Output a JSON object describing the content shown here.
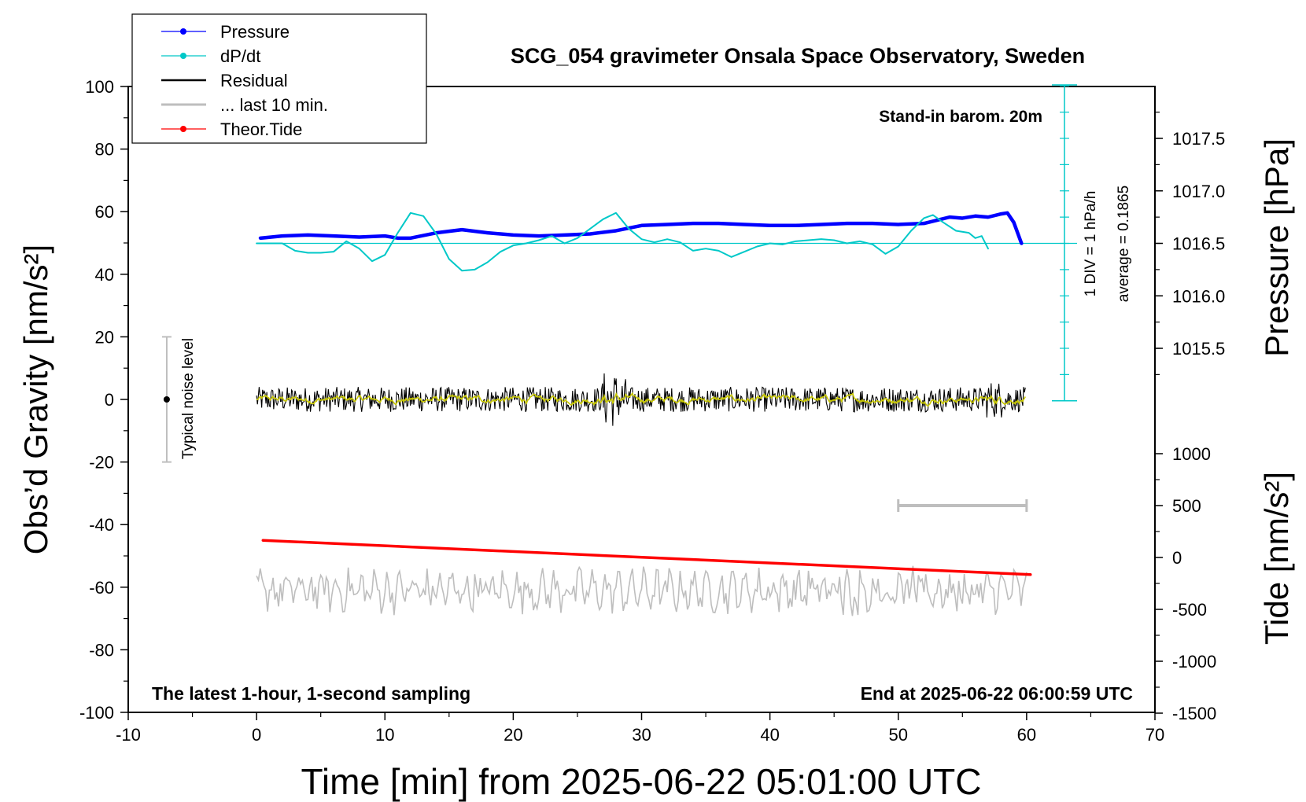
{
  "chart_data": {
    "type": "line",
    "title": "SCG_054 gravimeter Onsala Space Observatory, Sweden",
    "xlabel": "Time [min] from 2025-06-22 05:01:00 UTC",
    "ylabel_left": "Obs’d Gravity [nm/s²]",
    "ylabel_right_top": "Pressure [hPa]",
    "ylabel_right_bottom": "Tide [nm/s²]",
    "xlim": [
      -10,
      70
    ],
    "ylim": [
      -100,
      100
    ],
    "pressure_ylim": [
      1015.0,
      1018.0
    ],
    "tide_ylim": [
      -1500,
      1500
    ],
    "x_ticks": [
      "-10",
      "0",
      "10",
      "20",
      "30",
      "40",
      "50",
      "60",
      "70"
    ],
    "y_ticks": [
      "-100",
      "-80",
      "-60",
      "-40",
      "-20",
      "0",
      "20",
      "40",
      "60",
      "80",
      "100"
    ],
    "pressure_ticks": [
      "1015.5",
      "1016.0",
      "1016.5",
      "1017.0",
      "1017.5"
    ],
    "tide_ticks": [
      "-1500",
      "-1000",
      "-500",
      "0",
      "500",
      "1000"
    ],
    "grid": false,
    "legend_position": "top-left",
    "legend": [
      {
        "label": "Pressure",
        "color": "#0000ff",
        "marker": true
      },
      {
        "label": "dP/dt",
        "color": "#00c8c8",
        "marker": true
      },
      {
        "label": "Residual",
        "color": "#000000",
        "marker": false
      },
      {
        "label": "... last 10 min.",
        "color": "#bebebe",
        "marker": false
      },
      {
        "label": "Theor.Tide",
        "color": "#ff0000",
        "marker": true
      }
    ],
    "annotations": {
      "barometer": "Stand-in barom. 20m",
      "scale": "1 DIV = 1 hPa/h",
      "average": "average = 0.1865",
      "noise": "Typical noise level",
      "period": "The latest 1-hour, 1-second sampling",
      "end_time": "End at 2025-06-22 06:00:59 UTC"
    },
    "noise_bar": {
      "x": -7,
      "y": 0,
      "low": -20,
      "high": 20
    },
    "window_bar": {
      "x_start": 50,
      "x_end": 60,
      "tide_value": 500
    },
    "series": [
      {
        "name": "Pressure",
        "axis": "pressure",
        "color": "#0000ff",
        "x": [
          0.3,
          2,
          4,
          6,
          8,
          10,
          11,
          12,
          14,
          16,
          18,
          20,
          22,
          24,
          26,
          28,
          30,
          32,
          34,
          36,
          38,
          40,
          42,
          44,
          46,
          48,
          50,
          52,
          53,
          54,
          55,
          56,
          57,
          58,
          58.5,
          59,
          59.6
        ],
        "y": [
          1016.55,
          1016.57,
          1016.58,
          1016.57,
          1016.56,
          1016.57,
          1016.55,
          1016.55,
          1016.6,
          1016.63,
          1016.6,
          1016.58,
          1016.57,
          1016.58,
          1016.59,
          1016.62,
          1016.67,
          1016.68,
          1016.69,
          1016.69,
          1016.68,
          1016.67,
          1016.67,
          1016.68,
          1016.69,
          1016.69,
          1016.68,
          1016.69,
          1016.72,
          1016.75,
          1016.74,
          1016.76,
          1016.75,
          1016.78,
          1016.79,
          1016.7,
          1016.5
        ]
      },
      {
        "name": "dP/dt",
        "axis": "pressure",
        "color": "#00c8c8",
        "x": [
          0,
          2,
          3,
          4,
          5,
          6,
          7,
          8,
          9,
          10,
          11,
          12,
          13,
          14,
          15,
          16,
          17,
          18,
          19,
          20,
          21,
          22,
          23,
          24,
          25,
          26,
          27,
          28,
          29,
          30,
          31,
          32,
          33,
          34,
          35,
          36,
          37,
          38,
          39,
          40,
          41,
          42,
          43,
          44,
          45,
          46,
          47,
          48,
          49,
          50,
          51,
          52,
          52.7,
          53.5,
          54.5,
          55.5,
          56,
          56.5,
          57
        ],
        "y": [
          1016.5,
          1016.5,
          1016.43,
          1016.41,
          1016.41,
          1016.42,
          1016.52,
          1016.45,
          1016.33,
          1016.39,
          1016.6,
          1016.79,
          1016.76,
          1016.59,
          1016.35,
          1016.24,
          1016.25,
          1016.32,
          1016.42,
          1016.48,
          1016.5,
          1016.53,
          1016.57,
          1016.5,
          1016.55,
          1016.64,
          1016.73,
          1016.79,
          1016.64,
          1016.54,
          1016.51,
          1016.54,
          1016.51,
          1016.43,
          1016.45,
          1016.43,
          1016.37,
          1016.42,
          1016.47,
          1016.5,
          1016.49,
          1016.52,
          1016.53,
          1016.54,
          1016.53,
          1016.5,
          1016.52,
          1016.49,
          1016.4,
          1016.47,
          1016.62,
          1016.74,
          1016.77,
          1016.7,
          1016.62,
          1016.6,
          1016.55,
          1016.57,
          1016.45
        ]
      },
      {
        "name": "Residual",
        "axis": "gravity",
        "color": "#000000",
        "x_start": 0,
        "x_end": 59.9,
        "level": 0,
        "amplitude": 4,
        "smoothed_color": "#c8c800",
        "bursts": [
          {
            "x": 27.5,
            "amplitude": 9
          },
          {
            "x": 28.3,
            "amplitude": 7
          },
          {
            "x": 57.5,
            "amplitude": 6
          }
        ]
      },
      {
        "name": "... last 10 min.",
        "axis": "gravity",
        "color": "#bebebe",
        "x_start": 0,
        "x_end": 60,
        "level": -61,
        "amplitude": 5
      },
      {
        "name": "Theor.Tide",
        "axis": "tide",
        "color": "#ff0000",
        "x": [
          0.5,
          60.3
        ],
        "y": [
          165,
          -165
        ]
      }
    ]
  }
}
